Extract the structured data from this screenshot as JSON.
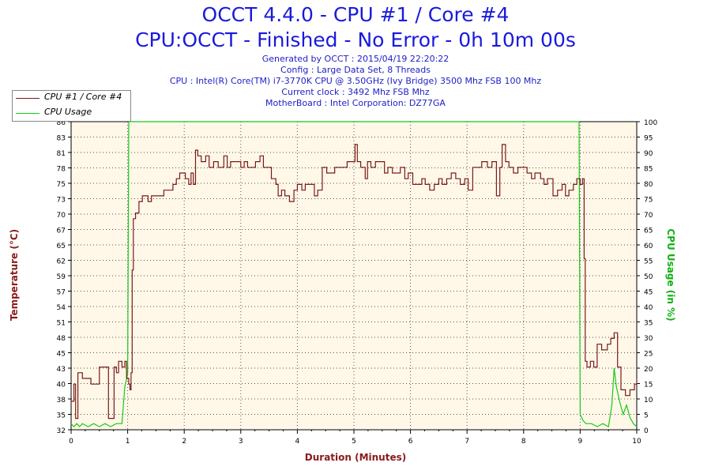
{
  "header": {
    "title_line1": "OCCT 4.4.0 - CPU #1 / Core #4",
    "title_line2": "CPU:OCCT - Finished - No Error - 0h 10m 00s",
    "info_lines": [
      "Generated by OCCT : 2015/04/19 22:20:22",
      "Config : Large Data Set, 8 Threads",
      "CPU : Intel(R) Core(TM) i7-3770K CPU @ 3.50GHz (Ivy Bridge) 3500 Mhz FSB 100 Mhz",
      "Current clock : 3492 Mhz FSB  Mhz",
      "MotherBoard : Intel Corporation: DZ77GA"
    ]
  },
  "colors": {
    "temperature": "#7a1a1a",
    "usage": "#19c819",
    "grid": "#555555",
    "plot_bg": "#fff8e8",
    "axis_text": "#000000"
  },
  "chart_data": {
    "type": "line",
    "xlabel": "Duration (Minutes)",
    "ylabel_left": "Temperature (°C)",
    "ylabel_right": "CPU Usage (in %)",
    "xlim": [
      0,
      10
    ],
    "ylim_left": [
      32,
      86
    ],
    "ylim_right": [
      0,
      100
    ],
    "x_ticks": [
      0,
      1,
      2,
      3,
      4,
      5,
      6,
      7,
      8,
      9,
      10
    ],
    "y_left_ticks": [
      32,
      35,
      38,
      40,
      43,
      45,
      48,
      51,
      54,
      57,
      59,
      62,
      65,
      67,
      70,
      73,
      75,
      78,
      81,
      83,
      86
    ],
    "y_right_ticks": [
      0,
      5,
      10,
      15,
      20,
      25,
      30,
      35,
      40,
      45,
      50,
      55,
      60,
      65,
      70,
      75,
      80,
      85,
      90,
      95,
      100
    ],
    "grid": true,
    "legend_position": "top-left",
    "series": [
      {
        "name": "CPU #1 / Core #4",
        "axis": "left",
        "points": [
          [
            0.0,
            37
          ],
          [
            0.05,
            40
          ],
          [
            0.08,
            34
          ],
          [
            0.12,
            42
          ],
          [
            0.2,
            41
          ],
          [
            0.3,
            41
          ],
          [
            0.35,
            40
          ],
          [
            0.45,
            40
          ],
          [
            0.5,
            43
          ],
          [
            0.62,
            43
          ],
          [
            0.66,
            34
          ],
          [
            0.72,
            34
          ],
          [
            0.76,
            43
          ],
          [
            0.8,
            42
          ],
          [
            0.84,
            44
          ],
          [
            0.9,
            43
          ],
          [
            0.95,
            44
          ],
          [
            0.98,
            41
          ],
          [
            1.02,
            40
          ],
          [
            1.04,
            39
          ],
          [
            1.06,
            42
          ],
          [
            1.08,
            60
          ],
          [
            1.1,
            69
          ],
          [
            1.14,
            70
          ],
          [
            1.2,
            72
          ],
          [
            1.26,
            73
          ],
          [
            1.36,
            72
          ],
          [
            1.42,
            73
          ],
          [
            1.56,
            73
          ],
          [
            1.64,
            74
          ],
          [
            1.72,
            74
          ],
          [
            1.8,
            75
          ],
          [
            1.86,
            76
          ],
          [
            1.92,
            77
          ],
          [
            1.98,
            77
          ],
          [
            2.02,
            76
          ],
          [
            2.08,
            75
          ],
          [
            2.12,
            77
          ],
          [
            2.16,
            75
          ],
          [
            2.2,
            81
          ],
          [
            2.24,
            80
          ],
          [
            2.3,
            79
          ],
          [
            2.38,
            80
          ],
          [
            2.44,
            78
          ],
          [
            2.52,
            79
          ],
          [
            2.6,
            78
          ],
          [
            2.7,
            80
          ],
          [
            2.76,
            78
          ],
          [
            2.82,
            79
          ],
          [
            2.92,
            79
          ],
          [
            3.0,
            78
          ],
          [
            3.06,
            79
          ],
          [
            3.12,
            78
          ],
          [
            3.2,
            78
          ],
          [
            3.26,
            79
          ],
          [
            3.34,
            80
          ],
          [
            3.4,
            78
          ],
          [
            3.48,
            78
          ],
          [
            3.54,
            76
          ],
          [
            3.62,
            75
          ],
          [
            3.66,
            73
          ],
          [
            3.72,
            74
          ],
          [
            3.78,
            73
          ],
          [
            3.86,
            72
          ],
          [
            3.94,
            74
          ],
          [
            4.0,
            75
          ],
          [
            4.08,
            74
          ],
          [
            4.14,
            75
          ],
          [
            4.22,
            75
          ],
          [
            4.3,
            73
          ],
          [
            4.36,
            74
          ],
          [
            4.44,
            78
          ],
          [
            4.52,
            77
          ],
          [
            4.58,
            77
          ],
          [
            4.66,
            78
          ],
          [
            4.8,
            78
          ],
          [
            4.88,
            79
          ],
          [
            4.96,
            79
          ],
          [
            5.02,
            82
          ],
          [
            5.06,
            79
          ],
          [
            5.12,
            78
          ],
          [
            5.2,
            76
          ],
          [
            5.24,
            79
          ],
          [
            5.3,
            78
          ],
          [
            5.38,
            79
          ],
          [
            5.46,
            79
          ],
          [
            5.54,
            77
          ],
          [
            5.6,
            78
          ],
          [
            5.68,
            77
          ],
          [
            5.76,
            77
          ],
          [
            5.82,
            78
          ],
          [
            5.9,
            76
          ],
          [
            5.96,
            77
          ],
          [
            6.04,
            75
          ],
          [
            6.12,
            75
          ],
          [
            6.2,
            76
          ],
          [
            6.26,
            75
          ],
          [
            6.34,
            74
          ],
          [
            6.42,
            75
          ],
          [
            6.5,
            76
          ],
          [
            6.56,
            75
          ],
          [
            6.64,
            76
          ],
          [
            6.72,
            77
          ],
          [
            6.8,
            76
          ],
          [
            6.88,
            75
          ],
          [
            6.96,
            76
          ],
          [
            7.02,
            74
          ],
          [
            7.1,
            78
          ],
          [
            7.18,
            78
          ],
          [
            7.26,
            79
          ],
          [
            7.36,
            78
          ],
          [
            7.44,
            79
          ],
          [
            7.52,
            73
          ],
          [
            7.58,
            78
          ],
          [
            7.62,
            82
          ],
          [
            7.68,
            79
          ],
          [
            7.74,
            78
          ],
          [
            7.82,
            77
          ],
          [
            7.9,
            78
          ],
          [
            8.0,
            78
          ],
          [
            8.06,
            77
          ],
          [
            8.14,
            76
          ],
          [
            8.2,
            77
          ],
          [
            8.3,
            76
          ],
          [
            8.36,
            75
          ],
          [
            8.42,
            76
          ],
          [
            8.52,
            73
          ],
          [
            8.6,
            74
          ],
          [
            8.68,
            75
          ],
          [
            8.74,
            73
          ],
          [
            8.8,
            74
          ],
          [
            8.88,
            75
          ],
          [
            8.94,
            76
          ],
          [
            9.0,
            75
          ],
          [
            9.04,
            76
          ],
          [
            9.07,
            62
          ],
          [
            9.09,
            44
          ],
          [
            9.12,
            43
          ],
          [
            9.18,
            44
          ],
          [
            9.24,
            43
          ],
          [
            9.3,
            47
          ],
          [
            9.38,
            46
          ],
          [
            9.48,
            47
          ],
          [
            9.54,
            48
          ],
          [
            9.6,
            49
          ],
          [
            9.66,
            43
          ],
          [
            9.72,
            39
          ],
          [
            9.8,
            38
          ],
          [
            9.88,
            39
          ],
          [
            9.96,
            40
          ],
          [
            10.0,
            41
          ]
        ]
      },
      {
        "name": "CPU Usage",
        "axis": "right",
        "points": [
          [
            0.0,
            2
          ],
          [
            0.05,
            1
          ],
          [
            0.1,
            2
          ],
          [
            0.15,
            1
          ],
          [
            0.2,
            2
          ],
          [
            0.3,
            1
          ],
          [
            0.4,
            2
          ],
          [
            0.5,
            1
          ],
          [
            0.6,
            2
          ],
          [
            0.7,
            1
          ],
          [
            0.8,
            2
          ],
          [
            0.9,
            2
          ],
          [
            0.95,
            14
          ],
          [
            1.0,
            18
          ],
          [
            1.02,
            100
          ],
          [
            1.5,
            100
          ],
          [
            2.0,
            100
          ],
          [
            3.0,
            100
          ],
          [
            4.0,
            100
          ],
          [
            5.0,
            100
          ],
          [
            6.0,
            100
          ],
          [
            7.0,
            100
          ],
          [
            8.0,
            100
          ],
          [
            8.98,
            100
          ],
          [
            9.0,
            5
          ],
          [
            9.05,
            3
          ],
          [
            9.1,
            2
          ],
          [
            9.2,
            2
          ],
          [
            9.3,
            1
          ],
          [
            9.4,
            2
          ],
          [
            9.5,
            1
          ],
          [
            9.56,
            8
          ],
          [
            9.6,
            20
          ],
          [
            9.64,
            14
          ],
          [
            9.7,
            9
          ],
          [
            9.76,
            5
          ],
          [
            9.82,
            8
          ],
          [
            9.88,
            4
          ],
          [
            9.94,
            2
          ],
          [
            10.0,
            1
          ]
        ]
      }
    ]
  }
}
